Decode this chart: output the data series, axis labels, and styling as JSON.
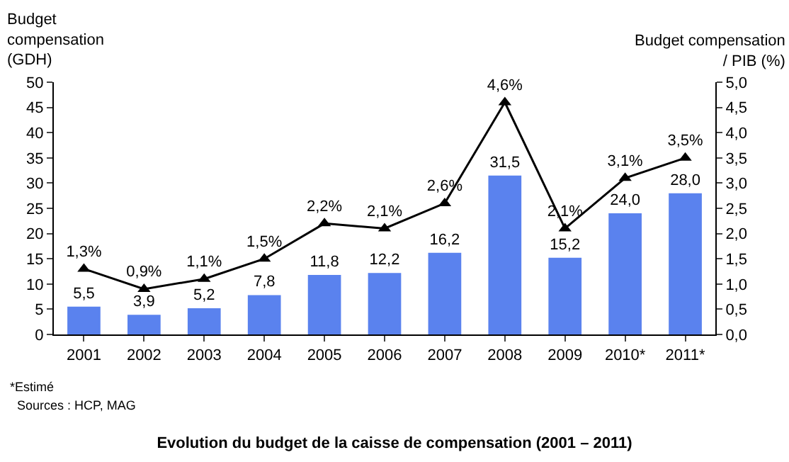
{
  "chart_data": {
    "type": "bar",
    "title": "Evolution du budget de la caisse de compensation (2001 – 2011)",
    "ylabel": "Budget\ncompensation\n(GDH)",
    "y2label": "Budget compensation\n/ PIB (%)",
    "annotations": [
      "*Estimé",
      "Sources : HCP, MAG"
    ],
    "categories": [
      "2001",
      "2002",
      "2003",
      "2004",
      "2005",
      "2006",
      "2007",
      "2008",
      "2009",
      "2010*",
      "2011*"
    ],
    "series": [
      {
        "color": "#5a82ee",
        "values": [
          5.5,
          3.9,
          5.2,
          7.8,
          11.8,
          12.2,
          16.2,
          31.5,
          15.2,
          24.0,
          28.0
        ],
        "value_labels": [
          "5,5",
          "3,9",
          "5,2",
          "7,8",
          "11,8",
          "12,2",
          "16,2",
          "31,5",
          "15,2",
          "24,0",
          "28,0"
        ]
      },
      {
        "type": "line",
        "axis": "y2",
        "color": "#000000",
        "marker": "triangle",
        "line_style": "solid",
        "values": [
          1.3,
          0.9,
          1.1,
          1.5,
          2.2,
          2.1,
          2.6,
          4.6,
          2.1,
          3.1,
          3.5
        ],
        "value_labels": [
          "1,3%",
          "0,9%",
          "1,1%",
          "1,5%",
          "2,2%",
          "2,1%",
          "2,6%",
          "4,6%",
          "2,1%",
          "3,1%",
          "3,5%"
        ]
      }
    ],
    "ylim": [
      0,
      50
    ],
    "yticks": [
      0,
      5,
      10,
      15,
      20,
      25,
      30,
      35,
      40,
      45,
      50
    ],
    "y2lim": [
      0,
      5
    ],
    "y2ticks": [
      {
        "value": 0,
        "label": "0,0"
      },
      {
        "value": 0.5,
        "label": "0,5"
      },
      {
        "value": 1,
        "label": "1,0"
      },
      {
        "value": 1.5,
        "label": "1,5"
      },
      {
        "value": 2,
        "label": "2,0"
      },
      {
        "value": 2.5,
        "label": "2,5"
      },
      {
        "value": 3,
        "label": "3,0"
      },
      {
        "value": 3.5,
        "label": "3,5"
      },
      {
        "value": 4,
        "label": "4,0"
      },
      {
        "value": 4.5,
        "label": "4,5"
      },
      {
        "value": 5,
        "label": "5,0"
      }
    ],
    "grid": false
  }
}
